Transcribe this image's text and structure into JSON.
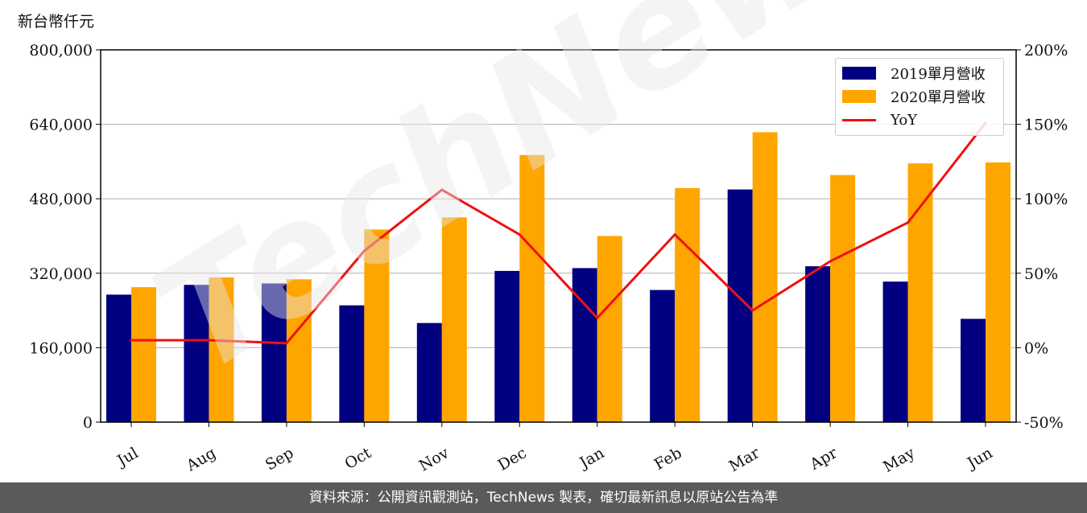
{
  "unit_label": "新台幣仟元",
  "footer_text": "資料來源：公開資訊觀測站，TechNews 製表，確切最新訊息以原站公告為準",
  "watermark": "TechNews",
  "colors": {
    "series_2019": "#000080",
    "series_2020": "#FFA500",
    "yoy": "#EE1111"
  },
  "chart_data": {
    "type": "bar",
    "categories": [
      "Jul",
      "Aug",
      "Sep",
      "Oct",
      "Nov",
      "Dec",
      "Jan",
      "Feb",
      "Mar",
      "Apr",
      "May",
      "Jun"
    ],
    "series": [
      {
        "name": "2019單月營收",
        "values": [
          274000,
          295000,
          298000,
          251000,
          213000,
          325000,
          331000,
          284000,
          500000,
          335000,
          302000,
          222000
        ]
      },
      {
        "name": "2020單月營收",
        "values": [
          290000,
          311000,
          307000,
          414000,
          440000,
          574000,
          400000,
          503000,
          623000,
          531000,
          556000,
          558000
        ]
      }
    ],
    "line_series": {
      "name": "YoY",
      "axis": "right",
      "values": [
        5,
        5,
        3,
        65,
        106,
        76,
        20,
        76,
        25,
        58,
        84,
        151
      ]
    },
    "ylim": [
      0,
      800000
    ],
    "y_ticks": [
      "0",
      "160,000",
      "320,000",
      "480,000",
      "640,000",
      "800,000"
    ],
    "y2lim": [
      -50,
      200
    ],
    "y2_ticks": [
      "-50%",
      "0%",
      "50%",
      "100%",
      "150%",
      "200%"
    ],
    "grid": true,
    "legend_position": "top-right"
  }
}
